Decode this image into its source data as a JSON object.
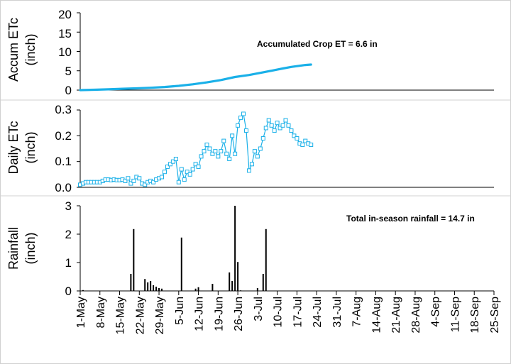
{
  "chart_data": [
    {
      "type": "line",
      "ylabel_lines": [
        "Accum ETc",
        "(inch)"
      ],
      "ylim": [
        0,
        20
      ],
      "yticks": [
        0,
        5,
        10,
        15,
        20
      ],
      "annotation": "Accumulated Crop ET = 6.6 in",
      "series": [
        {
          "color": "#1ab0e8",
          "day_offsets": [
            0,
            5,
            10,
            15,
            20,
            25,
            30,
            35,
            40,
            45,
            50,
            55,
            60,
            65,
            70,
            72,
            75,
            80,
            82
          ],
          "values": [
            0.0,
            0.1,
            0.2,
            0.35,
            0.45,
            0.6,
            0.8,
            1.1,
            1.5,
            2.0,
            2.6,
            3.4,
            3.9,
            4.6,
            5.3,
            5.6,
            6.0,
            6.5,
            6.6
          ]
        }
      ]
    },
    {
      "type": "line",
      "ylabel_lines": [
        "Daily ETc",
        "(inch)"
      ],
      "ylim": [
        0,
        0.3
      ],
      "yticks": [
        0.0,
        0.1,
        0.2,
        0.3
      ],
      "yticklabels": [
        "0.0",
        "0.1",
        "0.2",
        "0.3"
      ],
      "series": [
        {
          "color": "#1ab0e8",
          "marker": "square",
          "day_offsets": [
            0,
            1,
            2,
            3,
            4,
            5,
            6,
            7,
            8,
            9,
            10,
            11,
            12,
            13,
            14,
            15,
            16,
            17,
            18,
            19,
            20,
            21,
            22,
            23,
            24,
            25,
            26,
            27,
            28,
            29,
            30,
            31,
            32,
            33,
            34,
            35,
            36,
            37,
            38,
            39,
            40,
            41,
            42,
            43,
            44,
            45,
            46,
            47,
            48,
            49,
            50,
            51,
            52,
            53,
            54,
            55,
            56,
            57,
            58,
            59,
            60,
            61,
            62,
            63,
            64,
            65,
            66,
            67,
            68,
            69,
            70,
            71,
            72,
            73,
            74,
            75,
            76,
            77,
            78,
            79,
            80,
            81,
            82
          ],
          "values": [
            0.01,
            0.015,
            0.02,
            0.02,
            0.02,
            0.02,
            0.02,
            0.02,
            0.025,
            0.03,
            0.03,
            0.028,
            0.03,
            0.028,
            0.028,
            0.03,
            0.025,
            0.035,
            0.015,
            0.025,
            0.04,
            0.035,
            0.015,
            0.01,
            0.02,
            0.025,
            0.02,
            0.03,
            0.035,
            0.04,
            0.06,
            0.08,
            0.09,
            0.1,
            0.11,
            0.02,
            0.07,
            0.03,
            0.06,
            0.05,
            0.07,
            0.09,
            0.08,
            0.12,
            0.14,
            0.165,
            0.15,
            0.13,
            0.14,
            0.12,
            0.14,
            0.18,
            0.13,
            0.11,
            0.2,
            0.13,
            0.24,
            0.27,
            0.285,
            0.22,
            0.065,
            0.09,
            0.14,
            0.12,
            0.15,
            0.19,
            0.23,
            0.26,
            0.24,
            0.22,
            0.25,
            0.23,
            0.24,
            0.26,
            0.24,
            0.22,
            0.2,
            0.19,
            0.17,
            0.165,
            0.18,
            0.17,
            0.165
          ]
        }
      ]
    },
    {
      "type": "bar",
      "ylabel_lines": [
        "Rainfall",
        "(inch)"
      ],
      "ylim": [
        0,
        3
      ],
      "yticks": [
        0,
        1,
        2,
        3
      ],
      "annotation": "Total in-season rainfall = 14.7 in",
      "series": [
        {
          "color": "#000000",
          "day_offsets": [
            1,
            18,
            19,
            23,
            24,
            25,
            26,
            27,
            28,
            29,
            36,
            41,
            42,
            47,
            53,
            54,
            55,
            56,
            57,
            63,
            65,
            66
          ],
          "values": [
            0.03,
            0.6,
            2.18,
            0.42,
            0.3,
            0.35,
            0.2,
            0.15,
            0.1,
            0.08,
            1.88,
            0.08,
            0.13,
            0.25,
            0.65,
            0.35,
            3.0,
            1.02,
            0.02,
            0.1,
            0.6,
            2.18
          ]
        }
      ],
      "xticklabels": [
        "1-May",
        "8-May",
        "15-May",
        "22-May",
        "29-May",
        "5-Jun",
        "12-Jun",
        "19-Jun",
        "26-Jun",
        "3-Jul",
        "10-Jul",
        "17-Jul",
        "24-Jul",
        "31-Jul",
        "7-Aug",
        "14-Aug",
        "21-Aug",
        "28-Aug",
        "4-Sep",
        "11-Sep",
        "18-Sep",
        "25-Sep"
      ]
    }
  ]
}
